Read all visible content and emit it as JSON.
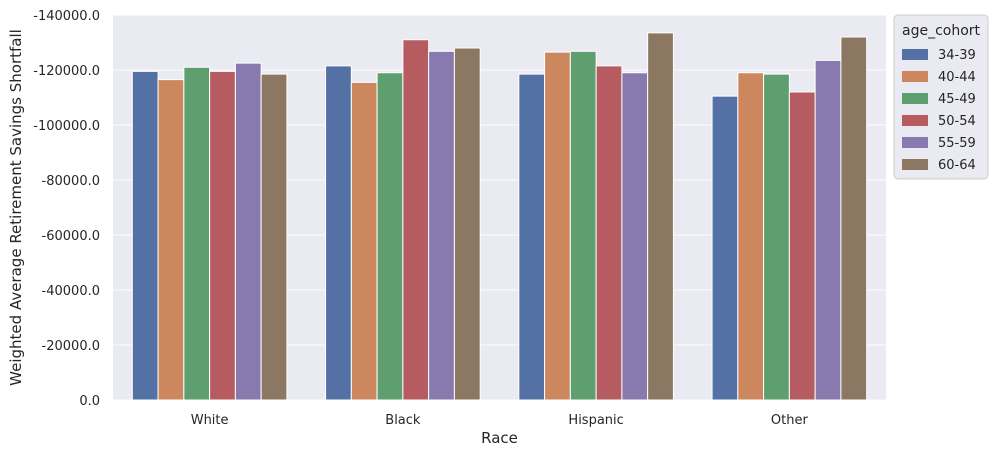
{
  "chart_data": {
    "type": "bar",
    "xlabel": "Race",
    "ylabel": "Weighted Average Retirement Savings Shortfall",
    "categories": [
      "White",
      "Black",
      "Hispanic",
      "Other"
    ],
    "ylim": [
      0,
      -140000
    ],
    "yticks": [
      0,
      -20000,
      -40000,
      -60000,
      -80000,
      -100000,
      -120000,
      -140000
    ],
    "ytick_labels": [
      "0.0",
      "-20000.0",
      "-40000.0",
      "-60000.0",
      "-80000.0",
      "-100000.0",
      "-120000.0",
      "-140000.0"
    ],
    "y_inverted": true,
    "grid": true,
    "legend": {
      "title": "age_cohort",
      "placement": "upper right, outside plot"
    },
    "series": [
      {
        "name": "34-39",
        "color": "#5471a5",
        "values": [
          -119500,
          -121500,
          -118500,
          -110500
        ]
      },
      {
        "name": "40-44",
        "color": "#cd875f",
        "values": [
          -116500,
          -115500,
          -126500,
          -119000
        ]
      },
      {
        "name": "45-49",
        "color": "#5f9e6e",
        "values": [
          -121000,
          -119000,
          -126800,
          -118500
        ]
      },
      {
        "name": "50-54",
        "color": "#b65c60",
        "values": [
          -119500,
          -131000,
          -121500,
          -112000
        ]
      },
      {
        "name": "55-59",
        "color": "#887aae",
        "values": [
          -122500,
          -126800,
          -119000,
          -123500
        ]
      },
      {
        "name": "60-64",
        "color": "#8b7762",
        "values": [
          -118500,
          -128000,
          -133500,
          -132000
        ]
      }
    ],
    "background_color": "#eaeaf2",
    "grid_color": "#ffffff"
  }
}
